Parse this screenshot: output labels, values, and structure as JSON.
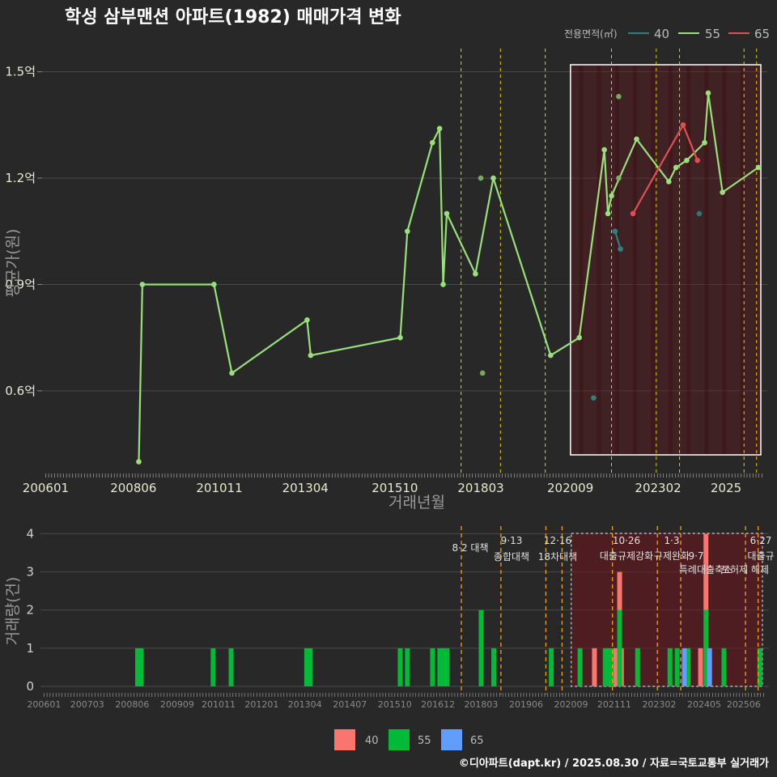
{
  "title": "학성 삼부맨션 아파트(1982) 매매가격 변화",
  "caption": "©디아파트(dapt.kr) / 2025.08.30 / 자료=국토교통부 실거래가",
  "colors": {
    "s40_line": "#2e7f7f",
    "s55_line": "#98e07a",
    "s65_line": "#e05050",
    "b40": "#f8766d",
    "b55": "#00ba38",
    "b65": "#619cff",
    "policy_line": "#e8d000",
    "policy_line2": "#f0a020"
  },
  "legend_top": {
    "title": "전용면적(㎡)",
    "items": [
      "40",
      "55",
      "65"
    ]
  },
  "legend_bottom": {
    "items": [
      "40",
      "55",
      "65"
    ]
  },
  "chart_data": [
    {
      "type": "line",
      "ylabel": "평균가(원)",
      "xlabel": "거래년월",
      "x_ticks": [
        "200601",
        "200806",
        "201011",
        "201304",
        "201510",
        "201803",
        "202009",
        "202302",
        "2025"
      ],
      "y_ticks": [
        "0.6억",
        "0.9억",
        "1.2억",
        "1.5억"
      ],
      "ylim": [
        0.36,
        1.57
      ],
      "series": [
        {
          "name": "40",
          "points": [
            [
              2021.3,
              0.58
            ],
            [
              2021.9,
              1.05
            ],
            [
              2022.05,
              1.0
            ]
          ],
          "line": [
            [
              2021.9,
              1.05
            ],
            [
              2022.05,
              1.0
            ]
          ],
          "extra_points": [
            [
              2024.25,
              1.1
            ]
          ]
        },
        {
          "name": "55",
          "line": [
            [
              2008.6,
              0.4
            ],
            [
              2008.7,
              0.9
            ],
            [
              2010.7,
              0.9
            ],
            [
              2011.2,
              0.65
            ],
            [
              2013.3,
              0.8
            ],
            [
              2013.4,
              0.7
            ],
            [
              2015.9,
              0.75
            ],
            [
              2016.1,
              1.05
            ],
            [
              2016.8,
              1.3
            ],
            [
              2017.0,
              1.34
            ],
            [
              2017.1,
              0.9
            ],
            [
              2017.2,
              1.1
            ],
            [
              2018.0,
              0.93
            ],
            [
              2018.5,
              1.2
            ],
            [
              2020.1,
              0.7
            ],
            [
              2020.9,
              0.75
            ],
            [
              2021.6,
              1.28
            ],
            [
              2021.7,
              1.1
            ],
            [
              2021.8,
              1.15
            ],
            [
              2022.5,
              1.31
            ],
            [
              2023.4,
              1.19
            ],
            [
              2023.6,
              1.23
            ],
            [
              2023.9,
              1.25
            ],
            [
              2024.4,
              1.3
            ],
            [
              2024.5,
              1.44
            ],
            [
              2024.9,
              1.16
            ],
            [
              2025.9,
              1.23
            ]
          ],
          "extra_points": [
            [
              2018.15,
              1.2
            ],
            [
              2018.2,
              0.65
            ],
            [
              2022.0,
              1.43
            ],
            [
              2022.0,
              1.2
            ]
          ]
        },
        {
          "name": "65",
          "line": [
            [
              2022.4,
              1.1
            ],
            [
              2023.8,
              1.35
            ],
            [
              2024.2,
              1.25
            ]
          ]
        }
      ],
      "policy_lines": [
        2017.6,
        2018.7,
        2019.95,
        2021.8,
        2023.05,
        2023.7,
        2025.5,
        2025.85
      ],
      "highlight_range": [
        2020.7,
        2026.15
      ]
    },
    {
      "type": "bar",
      "ylabel": "거래량(건)",
      "x_ticks": [
        "200601",
        "200703",
        "200806",
        "200909",
        "201011",
        "201201",
        "201304",
        "201407",
        "201510",
        "201612",
        "201803",
        "201906",
        "202009",
        "202111",
        "202302",
        "202405",
        "202506"
      ],
      "y_ticks": [
        "0",
        "1",
        "2",
        "3",
        "4"
      ],
      "ylim": [
        0,
        4.2
      ],
      "bars": [
        {
          "x": 2008.6,
          "s55": 1
        },
        {
          "x": 2008.7,
          "s55": 1
        },
        {
          "x": 2010.7,
          "s55": 1
        },
        {
          "x": 2011.2,
          "s55": 1
        },
        {
          "x": 2013.3,
          "s55": 1
        },
        {
          "x": 2013.4,
          "s55": 1
        },
        {
          "x": 2015.9,
          "s55": 1
        },
        {
          "x": 2016.1,
          "s55": 1
        },
        {
          "x": 2016.8,
          "s55": 1
        },
        {
          "x": 2017.0,
          "s55": 1
        },
        {
          "x": 2017.1,
          "s55": 1
        },
        {
          "x": 2017.2,
          "s55": 1
        },
        {
          "x": 2018.15,
          "s55": 2
        },
        {
          "x": 2018.5,
          "s55": 1
        },
        {
          "x": 2020.1,
          "s55": 1
        },
        {
          "x": 2020.9,
          "s55": 1
        },
        {
          "x": 2021.3,
          "s40": 1
        },
        {
          "x": 2021.6,
          "s55": 1
        },
        {
          "x": 2021.7,
          "s55": 1
        },
        {
          "x": 2021.8,
          "s55": 1
        },
        {
          "x": 2021.9,
          "s40": 1
        },
        {
          "x": 2022.05,
          "s40": 1,
          "s65": 0
        },
        {
          "x": 2022.0,
          "s55": 2,
          "s40": 1
        },
        {
          "x": 2022.5,
          "s55": 1
        },
        {
          "x": 2023.4,
          "s55": 1
        },
        {
          "x": 2023.6,
          "s55": 1
        },
        {
          "x": 2023.9,
          "s55": 1
        },
        {
          "x": 2023.8,
          "s65": 1
        },
        {
          "x": 2024.25,
          "s40": 1
        },
        {
          "x": 2024.4,
          "s55": 2,
          "s40": 2
        },
        {
          "x": 2024.5,
          "s65": 1
        },
        {
          "x": 2024.9,
          "s55": 1
        },
        {
          "x": 2025.9,
          "s55": 1
        }
      ],
      "policy_lines": [
        2017.6,
        2018.7,
        2019.95,
        2020.4,
        2021.8,
        2023.05,
        2023.7,
        2025.5,
        2025.85
      ],
      "policy_labels": [
        {
          "x": 2017.6,
          "line1": "8·2 대책",
          "line2": ""
        },
        {
          "x": 2018.7,
          "line1": "9·13",
          "line2": "종합대책"
        },
        {
          "x": 2019.95,
          "line1": "12·16",
          "line2": "18차대책"
        },
        {
          "x": 2021.8,
          "line1": "10·26",
          "line2": "대출규제강화"
        },
        {
          "x": 2023.05,
          "line1": "1·3",
          "line2": "규제완화"
        },
        {
          "x": 2023.7,
          "line1": "",
          "line2": "9·7"
        },
        {
          "x": 2023.7,
          "line1": "",
          "line2": "특례대출축소"
        },
        {
          "x": 2025.5,
          "line1": "",
          "line2": "토허제 해제"
        },
        {
          "x": 2025.85,
          "line1": "6·27",
          "line2": "대출규"
        }
      ],
      "highlight_range": [
        2020.7,
        2026.15
      ]
    }
  ]
}
